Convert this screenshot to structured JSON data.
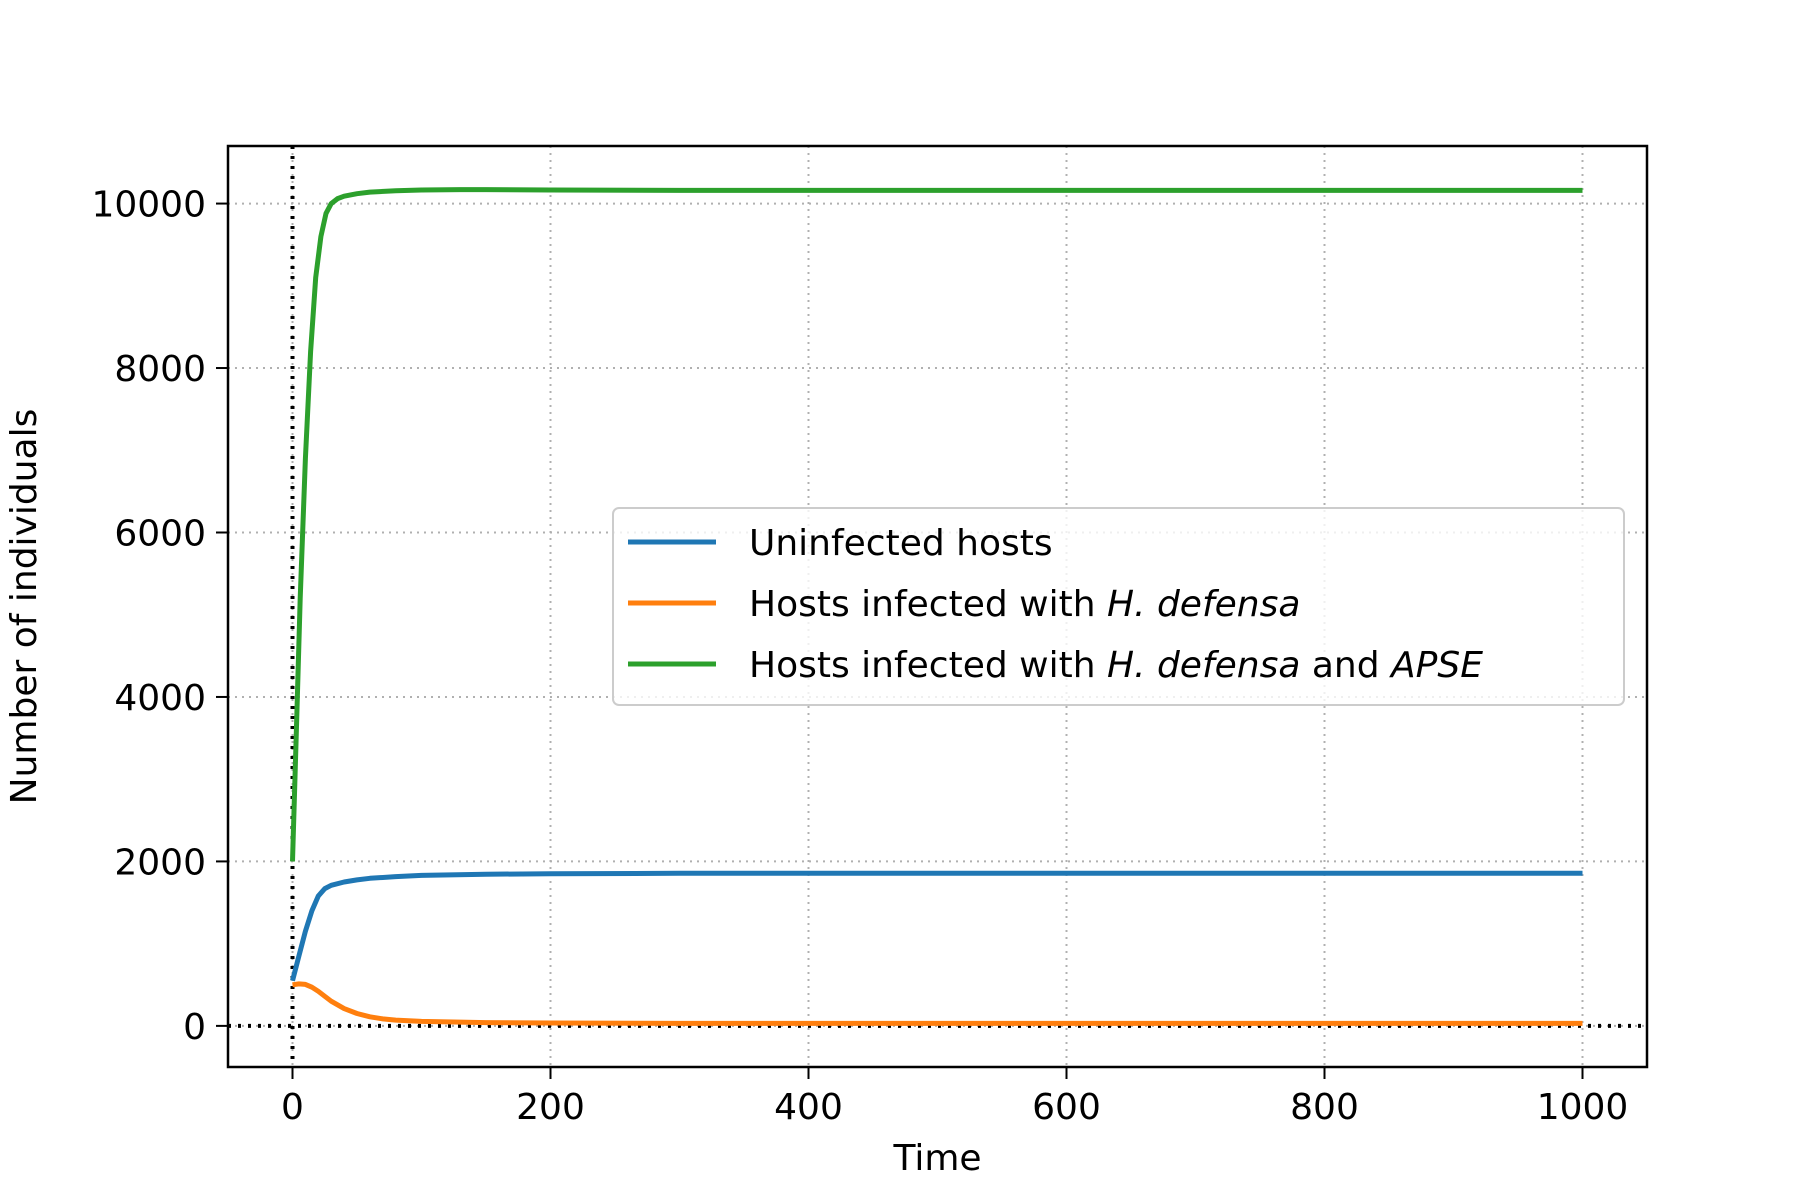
{
  "chart_data": {
    "type": "line",
    "title": "",
    "xlabel": "Time",
    "ylabel": "Number of individuals",
    "xlim": [
      -50,
      1050
    ],
    "ylim": [
      -500,
      10700
    ],
    "xticks": [
      0,
      200,
      400,
      600,
      800,
      1000
    ],
    "xtick_labels": [
      "0",
      "200",
      "400",
      "600",
      "800",
      "1000"
    ],
    "yticks": [
      0,
      2000,
      4000,
      6000,
      8000,
      10000
    ],
    "ytick_labels": [
      "0",
      "2000",
      "4000",
      "6000",
      "8000",
      "10000"
    ],
    "grid": true,
    "reference_lines": {
      "x": 0,
      "y": 0,
      "style": "dotted"
    },
    "legend_position": "center-right",
    "series": [
      {
        "name": "Uninfected hosts",
        "color": "#1f77b4",
        "x": [
          0,
          5,
          10,
          15,
          20,
          25,
          30,
          40,
          50,
          60,
          80,
          100,
          150,
          200,
          300,
          500,
          750,
          1000
        ],
        "y": [
          550,
          850,
          1150,
          1400,
          1580,
          1670,
          1710,
          1750,
          1775,
          1795,
          1815,
          1830,
          1845,
          1850,
          1855,
          1855,
          1855,
          1855
        ]
      },
      {
        "name": "Hosts infected with H. defensa",
        "name_parts": [
          {
            "text": "Hosts infected with ",
            "italic": false
          },
          {
            "text": "H. defensa",
            "italic": true
          }
        ],
        "color": "#ff7f0e",
        "x": [
          0,
          5,
          10,
          15,
          20,
          25,
          30,
          40,
          50,
          60,
          70,
          80,
          100,
          150,
          200,
          300,
          500,
          750,
          1000
        ],
        "y": [
          500,
          510,
          505,
          470,
          420,
          360,
          300,
          210,
          150,
          110,
          85,
          70,
          55,
          40,
          35,
          30,
          30,
          30,
          30
        ]
      },
      {
        "name": "Hosts infected with H. defensa and APSE",
        "name_parts": [
          {
            "text": "Hosts infected with ",
            "italic": false
          },
          {
            "text": "H. defensa",
            "italic": true
          },
          {
            "text": " and ",
            "italic": false
          },
          {
            "text": "APSE",
            "italic": true
          }
        ],
        "color": "#2ca02c",
        "x": [
          0,
          3,
          6,
          10,
          14,
          18,
          22,
          26,
          30,
          35,
          40,
          50,
          60,
          80,
          100,
          130,
          150,
          200,
          300,
          500,
          750,
          1000
        ],
        "y": [
          2000,
          3600,
          5200,
          6900,
          8200,
          9100,
          9600,
          9880,
          10000,
          10060,
          10090,
          10120,
          10140,
          10155,
          10165,
          10170,
          10170,
          10165,
          10160,
          10160,
          10160,
          10160
        ]
      }
    ]
  }
}
